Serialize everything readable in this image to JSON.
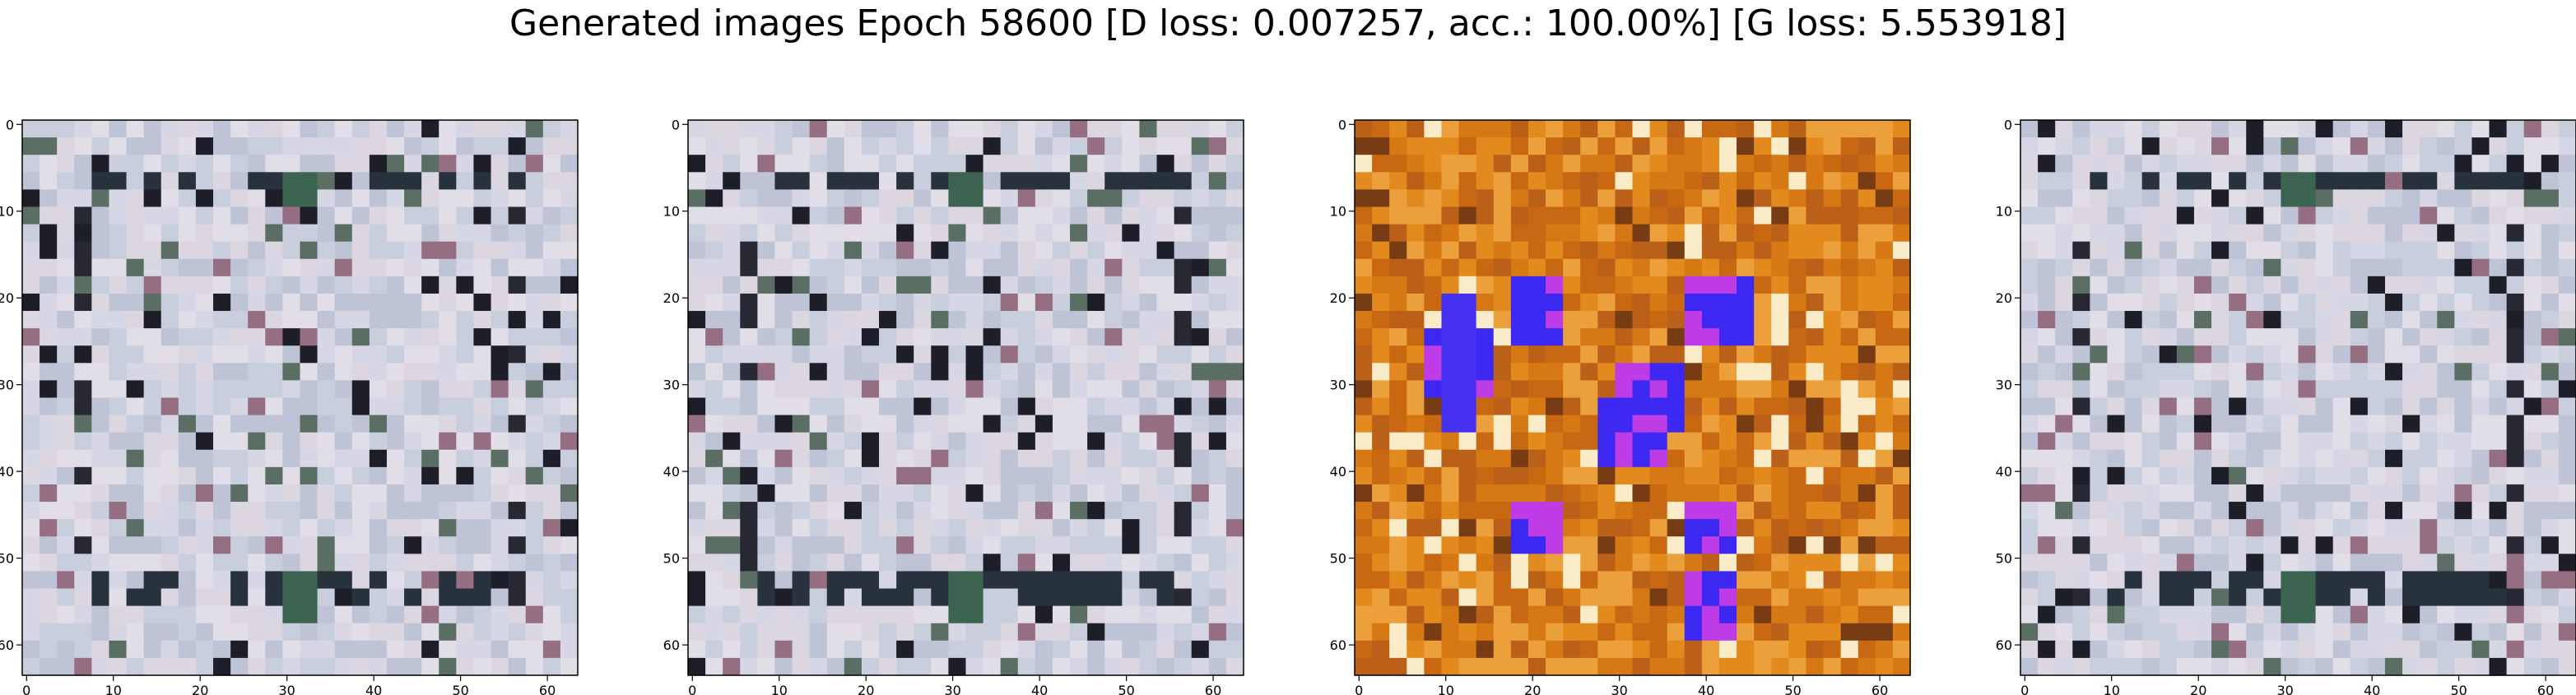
{
  "figure": {
    "title": "Generated images Epoch 58600 [D loss: 0.007257, acc.: 100.00%] [G loss: 5.553918]"
  },
  "chart_data": [
    {
      "type": "heatmap",
      "image": "generated-sample-1",
      "xlim": [
        0,
        63
      ],
      "ylim": [
        63,
        0
      ],
      "xticks": [
        "0",
        "10",
        "20",
        "30",
        "40",
        "50",
        "60"
      ],
      "yticks": [
        "0",
        "10",
        "20",
        "30",
        "40",
        "50",
        "60"
      ],
      "palette": "grey-blue"
    },
    {
      "type": "heatmap",
      "image": "generated-sample-2",
      "xlim": [
        0,
        63
      ],
      "ylim": [
        63,
        0
      ],
      "xticks": [
        "0",
        "10",
        "20",
        "30",
        "40",
        "50",
        "60"
      ],
      "yticks": [
        "0",
        "10",
        "20",
        "30",
        "40",
        "50",
        "60"
      ],
      "palette": "grey-blue"
    },
    {
      "type": "heatmap",
      "image": "generated-sample-3",
      "xlim": [
        0,
        63
      ],
      "ylim": [
        63,
        0
      ],
      "xticks": [
        "0",
        "10",
        "20",
        "30",
        "40",
        "50",
        "60"
      ],
      "yticks": [
        "0",
        "10",
        "20",
        "30",
        "40",
        "50",
        "60"
      ],
      "palette": "orange-magenta"
    },
    {
      "type": "heatmap",
      "image": "generated-sample-4",
      "xlim": [
        0,
        63
      ],
      "ylim": [
        63,
        0
      ],
      "xticks": [
        "0",
        "10",
        "20",
        "30",
        "40",
        "50",
        "60"
      ],
      "yticks": [
        "0",
        "10",
        "20",
        "30",
        "40",
        "50",
        "60"
      ],
      "palette": "grey-blue"
    }
  ]
}
